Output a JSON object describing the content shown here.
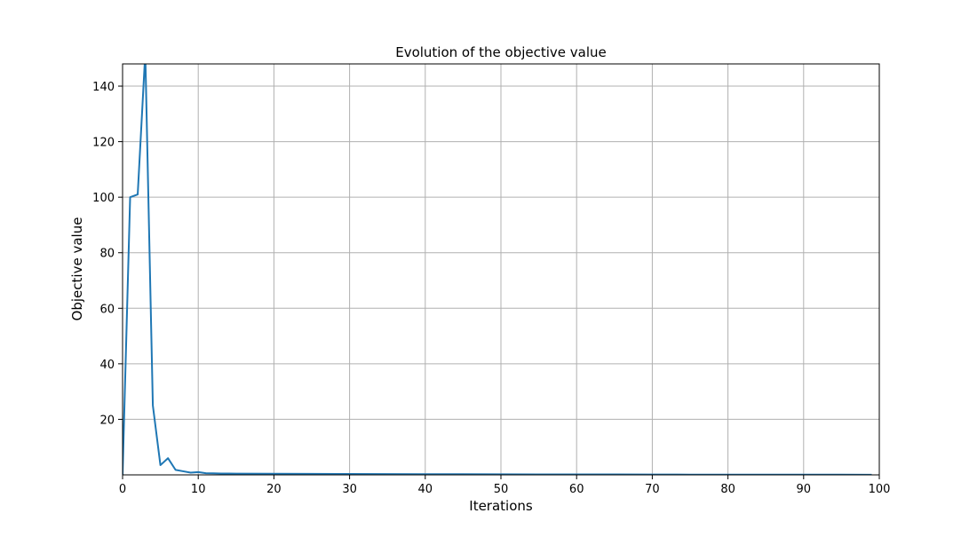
{
  "chart_data": {
    "type": "line",
    "title": "Evolution of the objective value",
    "xlabel": "Iterations",
    "ylabel": "Objective value",
    "xlim": [
      0,
      100
    ],
    "ylim": [
      0,
      148
    ],
    "xticks": [
      0,
      10,
      20,
      30,
      40,
      50,
      60,
      70,
      80,
      90,
      100
    ],
    "yticks": [
      20,
      40,
      60,
      80,
      100,
      120,
      140
    ],
    "grid": true,
    "series": [
      {
        "color": "#1f77b4",
        "x": [
          0,
          1,
          2,
          3,
          4,
          5,
          6,
          7,
          8,
          9,
          10,
          11,
          12,
          13,
          14,
          15,
          20,
          25,
          30,
          35,
          40,
          45,
          50,
          55,
          60,
          65,
          70,
          75,
          80,
          85,
          90,
          95,
          99
        ],
        "y": [
          0,
          100,
          101,
          152,
          25,
          3.5,
          6,
          1.8,
          1.3,
          0.8,
          1.0,
          0.6,
          0.55,
          0.5,
          0.5,
          0.45,
          0.4,
          0.35,
          0.3,
          0.28,
          0.25,
          0.22,
          0.2,
          0.18,
          0.16,
          0.14,
          0.12,
          0.1,
          0.09,
          0.08,
          0.07,
          0.06,
          0.05
        ]
      }
    ]
  }
}
